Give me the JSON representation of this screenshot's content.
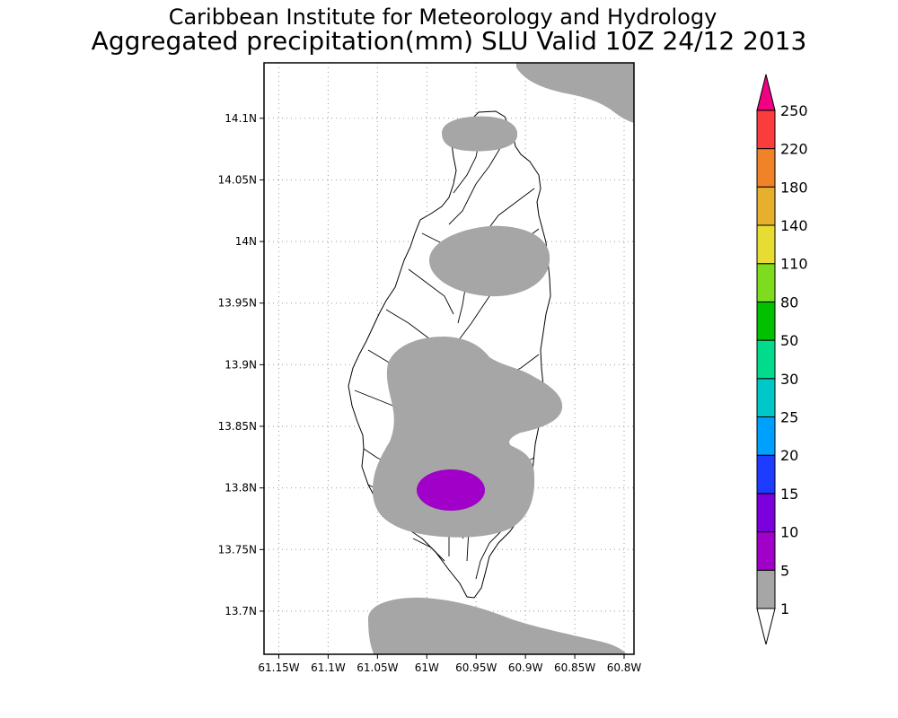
{
  "title": {
    "line1": "Caribbean Institute for Meteorology and Hydrology",
    "line2": "Aggregated precipitation(mm) SLU Valid 10Z 24/12 2013"
  },
  "map": {
    "lon_range": [
      -61.165,
      -60.79
    ],
    "lat_range": [
      13.665,
      14.145
    ],
    "grid": "dotted",
    "x_ticks": [
      "61.15W",
      "61.1W",
      "61.05W",
      "61W",
      "60.95W",
      "60.9W",
      "60.85W",
      "60.8W"
    ],
    "x_tick_values": [
      -61.15,
      -61.1,
      -61.05,
      -61.0,
      -60.95,
      -60.9,
      -60.85,
      -60.8
    ],
    "y_ticks": [
      "14.1N",
      "14.05N",
      "14N",
      "13.95N",
      "13.9N",
      "13.85N",
      "13.8N",
      "13.75N",
      "13.7N"
    ],
    "y_tick_values": [
      14.1,
      14.05,
      14.0,
      13.95,
      13.9,
      13.85,
      13.8,
      13.75,
      13.7
    ]
  },
  "colorbar": {
    "levels": [
      "1",
      "5",
      "10",
      "15",
      "20",
      "25",
      "30",
      "50",
      "80",
      "110",
      "140",
      "180",
      "220",
      "250"
    ],
    "colors": [
      "#a6a6a6",
      "#a000c8",
      "#7c00dc",
      "#1e3cff",
      "#00a0ff",
      "#00c8c8",
      "#00dc8c",
      "#00c000",
      "#7ddc1e",
      "#e6dc32",
      "#e6af2d",
      "#f08228",
      "#fa3c3c",
      "#f00082"
    ],
    "below_color": "#ffffff",
    "above_color": "#f00082"
  },
  "colors": {
    "rain_1_5": "#a6a6a6",
    "rain_5_10": "#a000c8",
    "land_outline": "#000000"
  }
}
